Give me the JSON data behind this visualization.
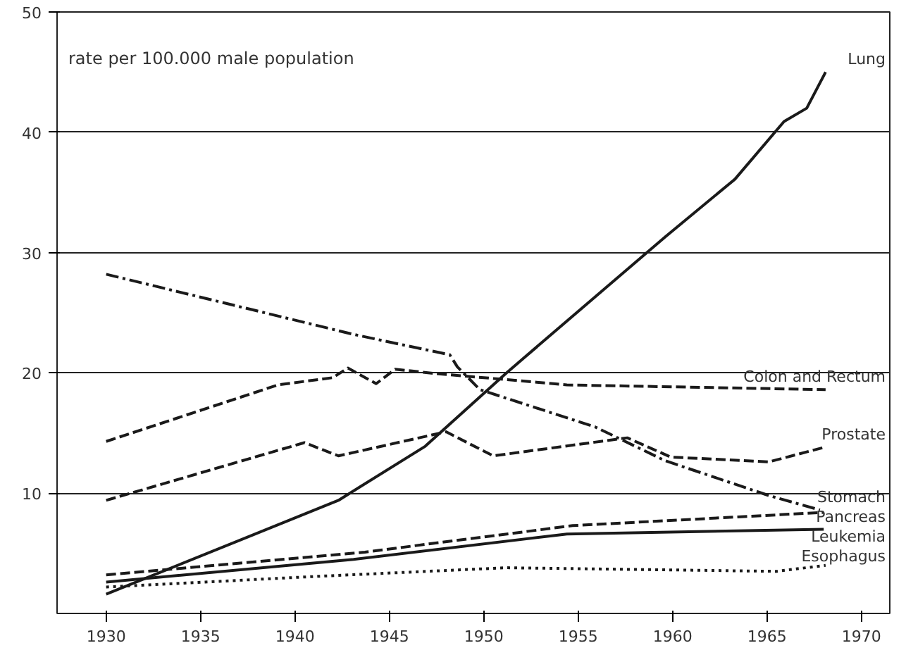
{
  "chart_data": {
    "type": "line",
    "ylabel": "rate per 100.000 male population",
    "xlim": [
      1927.4,
      1971.5
    ],
    "xticks": [
      1930,
      1935,
      1940,
      1945,
      1950,
      1955,
      1960,
      1965,
      1970
    ],
    "ylim": [
      0,
      50
    ],
    "yticks": [
      10,
      20,
      30,
      40,
      50
    ],
    "grid": "y",
    "legend": false,
    "series": [
      {
        "name": "Lung",
        "color": "#1a1a1a",
        "line_style": "solid",
        "x": [
          1930,
          1942.3,
          1946.9,
          1951.2,
          1959.6,
          1963.3,
          1965.9,
          1967.1,
          1968.1
        ],
        "values": [
          1.6,
          9.4,
          13.9,
          20,
          31.3,
          36.1,
          40.9,
          42.0,
          45.0
        ]
      },
      {
        "name": "Stomach",
        "color": "#1a1a1a",
        "line_style": "dashdot",
        "x": [
          1930,
          1943.1,
          1948.2,
          1948.6,
          1949.8,
          1955.9,
          1959.6,
          1965.1,
          1967.8
        ],
        "values": [
          28.2,
          23.2,
          21.5,
          20.5,
          18.6,
          15.5,
          12.7,
          9.8,
          8.6
        ]
      },
      {
        "name": "Colon and Rectum",
        "color": "#1a1a1a",
        "line_style": "dashed",
        "x": [
          1930,
          1939.1,
          1942.0,
          1942.8,
          1944.3,
          1945.3,
          1947.7,
          1950,
          1954.4,
          1968.1
        ],
        "values": [
          14.3,
          19.0,
          19.6,
          20.4,
          19.1,
          20.3,
          19.9,
          19.6,
          19.0,
          18.6
        ]
      },
      {
        "name": "Prostate",
        "color": "#1a1a1a",
        "line_style": "dashed",
        "x": [
          1930,
          1940.5,
          1942.3,
          1948,
          1950.5,
          1957.6,
          1959.9,
          1965.1,
          1968
        ],
        "values": [
          9.4,
          14.2,
          13.1,
          15.1,
          13.1,
          14.6,
          13.0,
          12.6,
          13.8
        ]
      },
      {
        "name": "Pancreas",
        "color": "#1a1a1a",
        "line_style": "dashed",
        "x": [
          1930,
          1943.7,
          1954.7,
          1968
        ],
        "values": [
          3.2,
          5.1,
          7.3,
          8.4
        ]
      },
      {
        "name": "Leukemia",
        "color": "#1a1a1a",
        "line_style": "solid",
        "x": [
          1930,
          1943.1,
          1954.4,
          1968
        ],
        "values": [
          2.6,
          4.5,
          6.6,
          7.0
        ]
      },
      {
        "name": "Esophagus",
        "color": "#1a1a1a",
        "line_style": "dotted",
        "x": [
          1930,
          1941.4,
          1951.2,
          1965.5,
          1968.1
        ],
        "values": [
          2.2,
          3.1,
          3.8,
          3.5,
          4.0
        ]
      }
    ]
  }
}
